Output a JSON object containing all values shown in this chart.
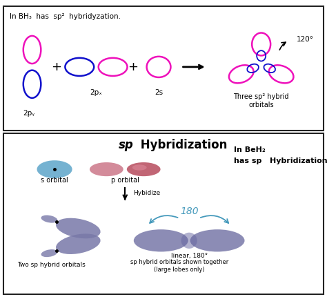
{
  "title_top": "In BH₃  has  sp²  hybridyzation.",
  "title_bottom": "sp Hybridization",
  "label_2py": "2pᵧ",
  "label_2px": "2pₓ",
  "label_2s": "2s",
  "label_three_sp2": "Three sp² hybrid\norbitals",
  "label_angle_top": "120°",
  "label_s_orbital": "s orbital",
  "label_p_orbital": "p orbital",
  "label_hybridize": "Hybidize",
  "label_two_sp": "Two sp hybrid orbitals",
  "label_sp_together": "sp hybrid orbitals shown together\n(large lobes only)",
  "label_linear": "linear, 180°",
  "label_beh": "In BeH₂\nhas sp   Hybridization",
  "bg_top": "#ffffff",
  "bg_bottom": "#dde3ee",
  "border_color": "#222222",
  "magenta": "#ee11bb",
  "blue_outline": "#1111cc",
  "pink_orb": "#cc7788",
  "pink_orb2": "#bb5566",
  "blue_orb": "#66aacc",
  "purple_orb": "#7878a8",
  "purple_orb_dark": "#6666a0",
  "angle_arrow": "#4499bb",
  "black": "#000000"
}
